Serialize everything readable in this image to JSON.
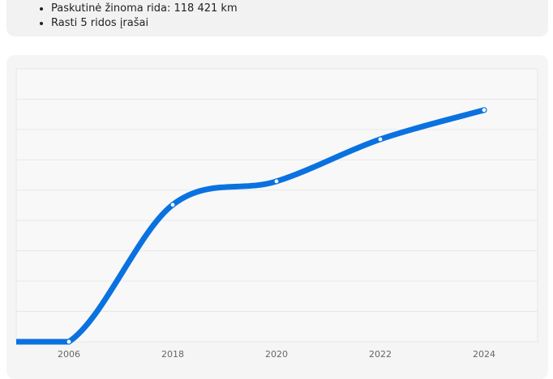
{
  "summary": {
    "items": [
      "Paskutinė žinoma rida: 118 421 km",
      "Rasti 5 ridos įrašai"
    ]
  },
  "chart_data": {
    "type": "line",
    "categories": [
      "2006",
      "2018",
      "2020",
      "2022",
      "2024"
    ],
    "series": [
      {
        "color": "#0a72e0",
        "values": [
          0,
          70000,
          82000,
          103500,
          118421
        ]
      }
    ],
    "ylim": [
      0,
      139500
    ],
    "yticks": [
      0,
      15500,
      31000,
      46500,
      62000,
      77500,
      93000,
      108500,
      124000,
      139500
    ],
    "grid": true
  }
}
